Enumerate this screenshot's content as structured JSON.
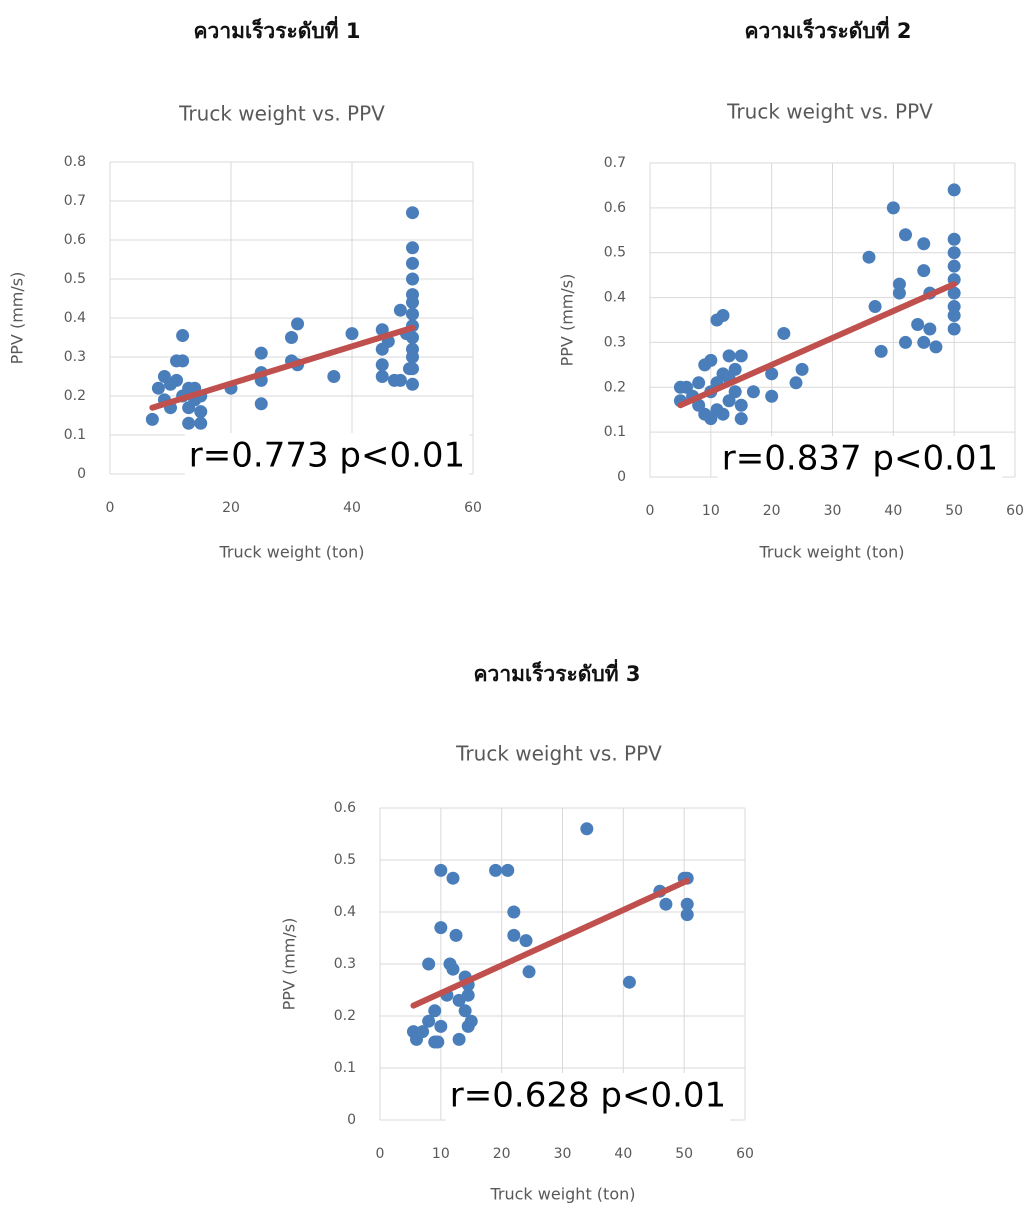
{
  "chart_data": [
    {
      "type": "scatter",
      "subtitle": "ความเร็วระดับที่ 1",
      "title": "Truck weight vs. PPV",
      "x_label": "Truck weight (ton)",
      "y_label": "PPV (mm/s)",
      "annotations": [
        "r=0.773 p<0.01"
      ],
      "color": "#4a7ebb",
      "trend_color": "#c0504d",
      "grid": true,
      "xlim": [
        0,
        60
      ],
      "ylim": [
        0,
        0.8
      ],
      "xticks": [
        0,
        20,
        40,
        60
      ],
      "yticks": [
        0,
        0.1,
        0.2,
        0.3,
        0.4,
        0.5,
        0.6,
        0.7,
        0.8
      ],
      "x": [
        7,
        8,
        9,
        9,
        10,
        10,
        11,
        11,
        12,
        12,
        12,
        13,
        13,
        13,
        14,
        14,
        15,
        15,
        15,
        20,
        25,
        25,
        25,
        25,
        30,
        30,
        31,
        31,
        37,
        40,
        45,
        45,
        45,
        45,
        46,
        47,
        48,
        48,
        49,
        50,
        50,
        50,
        50,
        50,
        50,
        50,
        50,
        50,
        50,
        50,
        50,
        50,
        49.5
      ],
      "values": [
        0.14,
        0.22,
        0.25,
        0.19,
        0.17,
        0.23,
        0.29,
        0.24,
        0.29,
        0.355,
        0.2,
        0.22,
        0.13,
        0.17,
        0.22,
        0.19,
        0.2,
        0.13,
        0.16,
        0.22,
        0.31,
        0.26,
        0.24,
        0.18,
        0.35,
        0.29,
        0.385,
        0.28,
        0.25,
        0.36,
        0.37,
        0.32,
        0.28,
        0.25,
        0.34,
        0.24,
        0.42,
        0.24,
        0.36,
        0.67,
        0.58,
        0.54,
        0.5,
        0.46,
        0.44,
        0.41,
        0.38,
        0.35,
        0.32,
        0.3,
        0.27,
        0.23,
        0.27
      ],
      "trend_x": [
        7,
        50
      ],
      "trend_y": [
        0.17,
        0.375
      ]
    },
    {
      "type": "scatter",
      "subtitle": "ความเร็วระดับที่ 2",
      "title": "Truck weight vs. PPV",
      "x_label": "Truck weight (ton)",
      "y_label": "PPV (mm/s)",
      "annotations": [
        "r=0.837 p<0.01"
      ],
      "color": "#4a7ebb",
      "trend_color": "#c0504d",
      "grid": true,
      "xlim": [
        0,
        60
      ],
      "ylim": [
        0,
        0.7
      ],
      "xticks": [
        0,
        10,
        20,
        30,
        40,
        50,
        60
      ],
      "yticks": [
        0,
        0.1,
        0.2,
        0.3,
        0.4,
        0.5,
        0.6,
        0.7
      ],
      "x": [
        5,
        5,
        6,
        7,
        8,
        8,
        9,
        9,
        10,
        10,
        10,
        11,
        11,
        11,
        12,
        12,
        12,
        13,
        13,
        13,
        14,
        14,
        15,
        15,
        15,
        17,
        20,
        20,
        22,
        24,
        25,
        36,
        37,
        38,
        40,
        41,
        41,
        42,
        42,
        44,
        45,
        45,
        45,
        46,
        46,
        47,
        50,
        50,
        50,
        50,
        50,
        50,
        50,
        50,
        50
      ],
      "values": [
        0.2,
        0.17,
        0.2,
        0.18,
        0.21,
        0.16,
        0.25,
        0.14,
        0.26,
        0.19,
        0.13,
        0.35,
        0.21,
        0.15,
        0.36,
        0.23,
        0.14,
        0.27,
        0.22,
        0.17,
        0.24,
        0.19,
        0.27,
        0.16,
        0.13,
        0.19,
        0.23,
        0.18,
        0.32,
        0.21,
        0.24,
        0.49,
        0.38,
        0.28,
        0.6,
        0.43,
        0.41,
        0.54,
        0.3,
        0.34,
        0.52,
        0.46,
        0.3,
        0.41,
        0.33,
        0.29,
        0.64,
        0.53,
        0.5,
        0.47,
        0.44,
        0.41,
        0.38,
        0.36,
        0.33
      ],
      "trend_x": [
        5,
        50
      ],
      "trend_y": [
        0.16,
        0.43
      ]
    },
    {
      "type": "scatter",
      "subtitle": "ความเร็วระดับที่ 3",
      "title": "Truck weight vs. PPV",
      "x_label": "Truck weight (ton)",
      "y_label": "PPV (mm/s)",
      "annotations": [
        "r=0.628 p<0.01"
      ],
      "color": "#4a7ebb",
      "trend_color": "#c0504d",
      "grid": true,
      "xlim": [
        0,
        60
      ],
      "ylim": [
        0,
        0.6
      ],
      "xticks": [
        0,
        10,
        20,
        30,
        40,
        50,
        60
      ],
      "yticks": [
        0,
        0.1,
        0.2,
        0.3,
        0.4,
        0.5,
        0.6
      ],
      "x": [
        5.5,
        6,
        7,
        8,
        8,
        9,
        9,
        9.5,
        10,
        10,
        10,
        11,
        11.5,
        12,
        12,
        12.5,
        13,
        13,
        14,
        14,
        14.5,
        14.5,
        14.5,
        15,
        19,
        21,
        22,
        22,
        24,
        24.5,
        34,
        41,
        46,
        47,
        50,
        50.5,
        50.5,
        50.5
      ],
      "values": [
        0.17,
        0.155,
        0.17,
        0.3,
        0.19,
        0.15,
        0.21,
        0.15,
        0.48,
        0.37,
        0.18,
        0.24,
        0.3,
        0.465,
        0.29,
        0.355,
        0.23,
        0.155,
        0.275,
        0.21,
        0.26,
        0.24,
        0.18,
        0.19,
        0.48,
        0.48,
        0.4,
        0.355,
        0.345,
        0.285,
        0.56,
        0.265,
        0.44,
        0.415,
        0.465,
        0.465,
        0.415,
        0.395
      ],
      "trend_x": [
        5.5,
        50.5
      ],
      "trend_y": [
        0.22,
        0.46
      ]
    }
  ]
}
